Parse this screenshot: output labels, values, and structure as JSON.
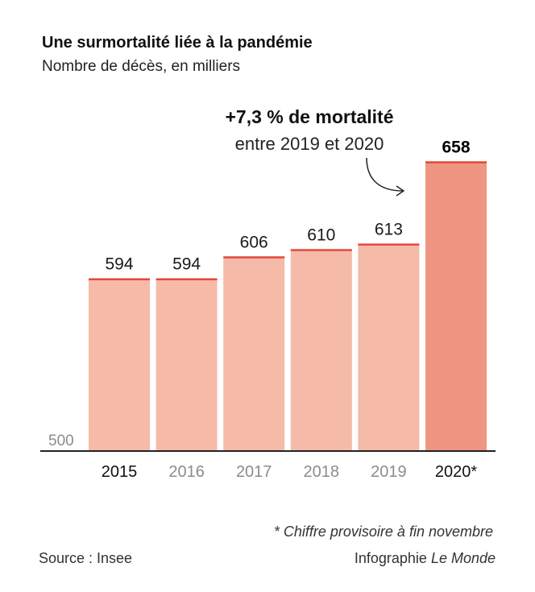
{
  "annotation": {
    "headline": "+7,3 % de mortalité",
    "detail": "entre 2019 et 2020"
  },
  "footnote": "* Chiffre provisoire à fin novembre",
  "source": "Source : Insee",
  "credit": {
    "prefix": "Infographie",
    "name": "Le Monde"
  },
  "colors": {
    "bar": "#f5baa8",
    "bar_highlight": "#ee9681",
    "bar_top": "#e4473d",
    "text": "#111111",
    "muted": "#8c8c8c",
    "axis": "#222222"
  },
  "chart_data": {
    "type": "bar",
    "title": "Une surmortalité liée à la pandémie",
    "ylabel": "Nombre de décès, en milliers",
    "xlabel": "",
    "categories": [
      "2015",
      "2016",
      "2017",
      "2018",
      "2019",
      "2020*"
    ],
    "values": [
      594,
      594,
      606,
      610,
      613,
      658
    ],
    "ylim": [
      500,
      660
    ],
    "y_ticks": [
      500
    ],
    "highlight_index": 5,
    "tick_emphasis": [
      true,
      false,
      false,
      false,
      false,
      true
    ],
    "grid": false,
    "legend": "none"
  }
}
